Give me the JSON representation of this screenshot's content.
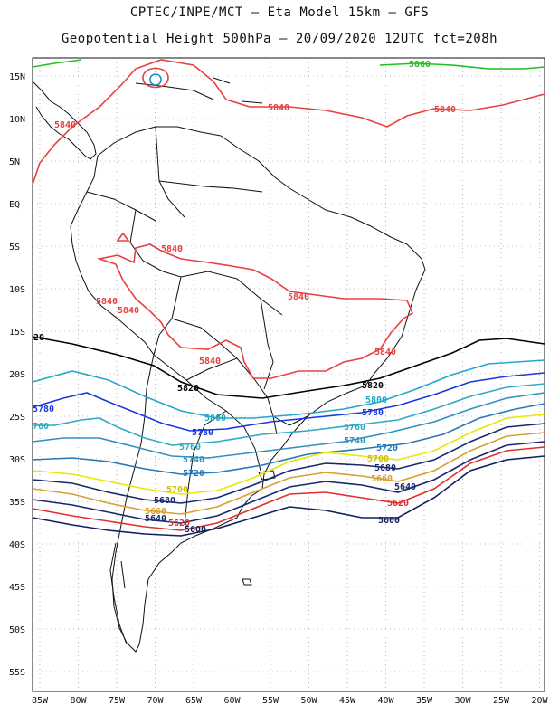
{
  "header": {
    "line1": "CPTEC/INPE/MCT –  Eta Model 15km – GFS",
    "line2": "Geopotential Height 500hPa – 20/09/2020 12UTC fct=208h"
  },
  "axes": {
    "latitudes": [
      "15N",
      "10N",
      "5N",
      "EQ",
      "5S",
      "10S",
      "15S",
      "20S",
      "25S",
      "30S",
      "35S",
      "40S",
      "45S",
      "50S",
      "55S"
    ],
    "longitudes": [
      "85W",
      "80W",
      "75W",
      "70W",
      "65W",
      "60W",
      "55W",
      "50W",
      "45W",
      "40W",
      "35W",
      "30W",
      "25W",
      "20W"
    ]
  },
  "colors": {
    "c5860": "#20c020",
    "c5840": "#e84040",
    "c5820": "#000000",
    "c5800": "#20a8c8",
    "c5780": "#1838e0",
    "c5760": "#30a8c8",
    "c5740": "#3090c0",
    "c5720": "#2878b8",
    "c5700": "#f0f000",
    "c5680": "#182870",
    "c5660": "#d8a030",
    "c5620": "#e03030",
    "c5600": "#102060",
    "land": "#111111",
    "grid": "#888888"
  },
  "contour_labels": [
    {
      "key": "l5860",
      "text": "5860"
    },
    {
      "key": "l5840a",
      "text": "5840"
    },
    {
      "key": "l5840b",
      "text": "5840"
    },
    {
      "key": "l5840c",
      "text": "5840"
    },
    {
      "key": "l5840d",
      "text": "5840"
    },
    {
      "key": "l5840e",
      "text": "5840"
    },
    {
      "key": "l5840f",
      "text": "5840"
    },
    {
      "key": "l5840g",
      "text": "5840"
    },
    {
      "key": "l5840h",
      "text": "5840"
    },
    {
      "key": "l5840i",
      "text": "5840"
    },
    {
      "key": "l5820a",
      "text": "20"
    },
    {
      "key": "l5820b",
      "text": "5820"
    },
    {
      "key": "l5820c",
      "text": "5820"
    },
    {
      "key": "l5800a",
      "text": "5800"
    },
    {
      "key": "l5800b",
      "text": "5800"
    },
    {
      "key": "l5780a",
      "text": "5780"
    },
    {
      "key": "l5780b",
      "text": "5780"
    },
    {
      "key": "l5780c",
      "text": "5780"
    },
    {
      "key": "l5760a",
      "text": "760"
    },
    {
      "key": "l5760b",
      "text": "5760"
    },
    {
      "key": "l5760c",
      "text": "5760"
    },
    {
      "key": "l5740a",
      "text": "5740"
    },
    {
      "key": "l5740b",
      "text": "5740"
    },
    {
      "key": "l5720a",
      "text": "5720"
    },
    {
      "key": "l5720b",
      "text": "5720"
    },
    {
      "key": "l5700a",
      "text": "5700"
    },
    {
      "key": "l5700b",
      "text": "5700"
    },
    {
      "key": "l5680a",
      "text": "5680"
    },
    {
      "key": "l5680b",
      "text": "5680"
    },
    {
      "key": "l5660a",
      "text": "5660"
    },
    {
      "key": "l5660b",
      "text": "5660"
    },
    {
      "key": "l5640a",
      "text": "5640"
    },
    {
      "key": "l5640b",
      "text": "5640"
    },
    {
      "key": "l5620a",
      "text": "5620"
    },
    {
      "key": "l5620b",
      "text": "5620"
    },
    {
      "key": "l5600a",
      "text": "5600"
    },
    {
      "key": "l5600b",
      "text": "5600"
    }
  ]
}
